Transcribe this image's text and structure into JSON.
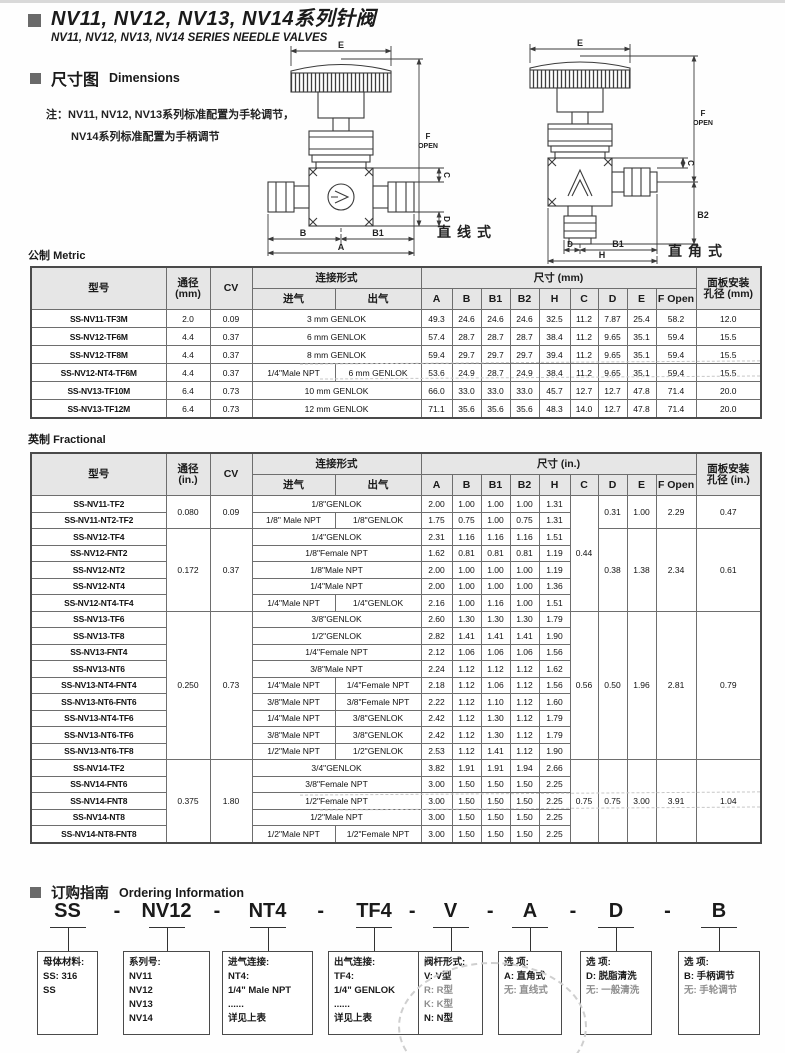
{
  "page": {
    "title_cn": "NV11, NV12, NV13, NV14系列针阀",
    "title_en": "NV11, NV12, NV13, NV14 SERIES NEEDLE VALVES",
    "dim_section": {
      "cn": "尺寸图",
      "en": "Dimensions"
    },
    "note_line1": "注：NV11, NV12, NV13系列标准配置为手轮调节，",
    "note_line2": "NV14系列标准配置为手柄调节",
    "metric_label": {
      "cn": "公制",
      "en": "Metric"
    },
    "fractional_label": {
      "cn": "英制",
      "en": "Fractional"
    },
    "ordering_section": {
      "cn": "订购指南",
      "en": "Ordering Information"
    }
  },
  "diagrams": {
    "left": {
      "label": "直线式",
      "E": "E",
      "F": "F",
      "OPEN": "OPEN",
      "C": "C",
      "D": "D",
      "B": "B",
      "B1": "B1",
      "A": "A"
    },
    "right": {
      "label": "直角式",
      "E": "E",
      "F": "F",
      "OPEN": "OPEN",
      "C": "C",
      "B2": "B2",
      "D": "D",
      "B1": "B1",
      "H": "H"
    }
  },
  "metric_table": {
    "headers": {
      "model": "型号",
      "bore": "通径",
      "bore_unit": "(mm)",
      "cv": "CV",
      "connection": "连接形式",
      "inlet": "进气",
      "outlet": "出气",
      "dimensions": "尺寸  (mm)",
      "dims": [
        "A",
        "B",
        "B1",
        "B2",
        "H",
        "C",
        "D",
        "E",
        "F Open"
      ],
      "panel1": "面板安装",
      "panel2": "孔径  (mm)"
    },
    "rows": [
      [
        "SS-NV11-TF3M",
        "2.0",
        "0.09",
        {
          "t": "3 mm GENLOK",
          "cs": 2
        },
        "49.3",
        "24.6",
        "24.6",
        "24.6",
        "32.5",
        "11.2",
        "7.87",
        "25.4",
        "58.2",
        "12.0"
      ],
      [
        "SS-NV12-TF6M",
        "4.4",
        "0.37",
        {
          "t": "6 mm GENLOK",
          "cs": 2
        },
        "57.4",
        "28.7",
        "28.7",
        "28.7",
        "38.4",
        "11.2",
        "9.65",
        "35.1",
        "59.4",
        "15.5"
      ],
      [
        "SS-NV12-TF8M",
        "4.4",
        "0.37",
        {
          "t": "8 mm GENLOK",
          "cs": 2
        },
        "59.4",
        "29.7",
        "29.7",
        "29.7",
        "39.4",
        "11.2",
        "9.65",
        "35.1",
        "59.4",
        "15.5"
      ],
      [
        "SS-NV12-NT4-TF6M",
        "4.4",
        "0.37",
        {
          "t": "1/4\"Male NPT"
        },
        {
          "t": "6 mm GENLOK"
        },
        {
          "t": "53.6",
          "m": 1
        },
        {
          "t": "24.9",
          "m": 1
        },
        {
          "t": "28.7",
          "m": 1
        },
        {
          "t": "24.9",
          "m": 1
        },
        {
          "t": "38.4",
          "m": 1
        },
        {
          "t": "11.2",
          "m": 1
        },
        {
          "t": "9.65",
          "m": 1
        },
        {
          "t": "35.1",
          "m": 1
        },
        {
          "t": "59.4",
          "m": 1
        },
        {
          "t": "15.5",
          "m": 1
        }
      ],
      [
        "SS-NV13-TF10M",
        "6.4",
        "0.73",
        {
          "t": "10 mm GENLOK",
          "cs": 2
        },
        "66.0",
        "33.0",
        "33.0",
        "33.0",
        "45.7",
        "12.7",
        "12.7",
        "47.8",
        "71.4",
        "20.0"
      ],
      [
        "SS-NV13-TF12M",
        "6.4",
        "0.73",
        {
          "t": "12 mm GENLOK",
          "cs": 2
        },
        "71.1",
        "35.6",
        "35.6",
        "35.6",
        "48.3",
        "14.0",
        "12.7",
        "47.8",
        "71.4",
        "20.0"
      ]
    ]
  },
  "fractional_table": {
    "headers": {
      "model": "型号",
      "bore": "通径",
      "bore_unit": "(in.)",
      "cv": "CV",
      "connection": "连接形式",
      "inlet": "进气",
      "outlet": "出气",
      "dimensions": "尺寸  (in.)",
      "dims": [
        "A",
        "B",
        "B1",
        "B2",
        "H",
        "C",
        "D",
        "E",
        "F Open"
      ],
      "panel1": "面板安装",
      "panel2": "孔径  (in.)"
    },
    "rows": [
      [
        "SS-NV11-TF2",
        {
          "t": "0.080",
          "rs": 2
        },
        {
          "t": "0.09",
          "rs": 2
        },
        {
          "t": "1/8\"GENLOK",
          "cs": 2
        },
        "2.00",
        "1.00",
        "1.00",
        "1.00",
        "1.31",
        {
          "t": "0.44",
          "rs": 7
        },
        {
          "t": "0.31",
          "rs": 2
        },
        {
          "t": "1.00",
          "rs": 2
        },
        {
          "t": "2.29",
          "rs": 2
        },
        {
          "t": "0.47",
          "rs": 2
        }
      ],
      [
        "SS-NV11-NT2-TF2",
        "1/8\" Male NPT",
        "1/8\"GENLOK",
        "1.75",
        "0.75",
        "1.00",
        "0.75",
        "1.31"
      ],
      [
        "SS-NV12-TF4",
        {
          "t": "0.172",
          "rs": 5
        },
        {
          "t": "0.37",
          "rs": 5
        },
        {
          "t": "1/4\"GENLOK",
          "cs": 2
        },
        "2.31",
        "1.16",
        "1.16",
        "1.16",
        "1.51",
        {
          "t": "0.38",
          "rs": 5
        },
        {
          "t": "1.38",
          "rs": 5
        },
        {
          "t": "2.34",
          "rs": 5
        },
        {
          "t": "0.61",
          "rs": 5
        }
      ],
      [
        "SS-NV12-FNT2",
        {
          "t": "1/8\"Female NPT",
          "cs": 2
        },
        "1.62",
        "0.81",
        "0.81",
        "0.81",
        "1.19"
      ],
      [
        "SS-NV12-NT2",
        {
          "t": "1/8\"Male NPT",
          "cs": 2
        },
        "2.00",
        "1.00",
        "1.00",
        "1.00",
        "1.19"
      ],
      [
        "SS-NV12-NT4",
        {
          "t": "1/4\"Male NPT",
          "cs": 2
        },
        "2.00",
        "1.00",
        "1.00",
        "1.00",
        "1.36"
      ],
      [
        "SS-NV12-NT4-TF4",
        "1/4\"Male NPT",
        "1/4\"GENLOK",
        "2.16",
        "1.00",
        "1.16",
        "1.00",
        "1.51"
      ],
      [
        "SS-NV13-TF6",
        {
          "t": "0.250",
          "rs": 9
        },
        {
          "t": "0.73",
          "rs": 9
        },
        {
          "t": "3/8\"GENLOK",
          "cs": 2
        },
        "2.60",
        "1.30",
        "1.30",
        "1.30",
        "1.79",
        {
          "t": "0.56",
          "rs": 9
        },
        {
          "t": "0.50",
          "rs": 9
        },
        {
          "t": "1.96",
          "rs": 9
        },
        {
          "t": "2.81",
          "rs": 9
        },
        {
          "t": "0.79",
          "rs": 9
        }
      ],
      [
        "SS-NV13-TF8",
        {
          "t": "1/2\"GENLOK",
          "cs": 2
        },
        "2.82",
        "1.41",
        "1.41",
        "1.41",
        "1.90"
      ],
      [
        "SS-NV13-FNT4",
        {
          "t": "1/4\"Female NPT",
          "cs": 2
        },
        "2.12",
        "1.06",
        "1.06",
        "1.06",
        "1.56"
      ],
      [
        "SS-NV13-NT6",
        {
          "t": "3/8\"Male NPT",
          "cs": 2
        },
        "2.24",
        "1.12",
        "1.12",
        "1.12",
        "1.62"
      ],
      [
        "SS-NV13-NT4-FNT4",
        "1/4\"Male NPT",
        "1/4\"Female NPT",
        "2.18",
        "1.12",
        "1.06",
        "1.12",
        "1.56"
      ],
      [
        "SS-NV13-NT6-FNT6",
        "3/8\"Male NPT",
        "3/8\"Female NPT",
        "2.22",
        "1.12",
        "1.10",
        "1.12",
        "1.60"
      ],
      [
        "SS-NV13-NT4-TF6",
        "1/4\"Male NPT",
        "3/8\"GENLOK",
        "2.42",
        "1.12",
        "1.30",
        "1.12",
        "1.79"
      ],
      [
        "SS-NV13-NT6-TF6",
        "3/8\"Male NPT",
        "3/8\"GENLOK",
        "2.42",
        "1.12",
        "1.30",
        "1.12",
        "1.79"
      ],
      [
        "SS-NV13-NT6-TF8",
        "1/2\"Male NPT",
        "1/2\"GENLOK",
        "2.53",
        "1.12",
        "1.41",
        "1.12",
        "1.90"
      ],
      [
        "SS-NV14-TF2",
        {
          "t": "0.375",
          "rs": 5
        },
        {
          "t": "1.80",
          "rs": 5
        },
        {
          "t": "3/4\"GENLOK",
          "cs": 2
        },
        "3.82",
        "1.91",
        "1.91",
        "1.94",
        "2.66",
        {
          "t": "0.75",
          "rs": 5,
          "m": 1
        },
        {
          "t": "0.75",
          "rs": 5,
          "m": 1
        },
        {
          "t": "3.00",
          "rs": 5,
          "m": 1
        },
        {
          "t": "3.91",
          "rs": 5,
          "m": 1
        },
        {
          "t": "1.04",
          "rs": 5,
          "m": 1
        }
      ],
      [
        "SS-NV14-FNT6",
        {
          "t": "3/8\"Female NPT",
          "cs": 2
        },
        "3.00",
        "1.50",
        "1.50",
        "1.50",
        "2.25"
      ],
      [
        "SS-NV14-FNT8",
        {
          "t": "1/2\"Female NPT",
          "cs": 2
        },
        {
          "t": "3.00",
          "m": 1
        },
        {
          "t": "1.50",
          "m": 1
        },
        {
          "t": "1.50",
          "m": 1
        },
        {
          "t": "1.50",
          "m": 1
        },
        {
          "t": "2.25",
          "m": 1
        }
      ],
      [
        "SS-NV14-NT8",
        {
          "t": "1/2\"Male NPT",
          "cs": 2
        },
        "3.00",
        "1.50",
        "1.50",
        "1.50",
        "2.25"
      ],
      [
        "SS-NV14-NT8-FNT8",
        "1/2\"Male NPT",
        "1/2\"Female NPT",
        "3.00",
        "1.50",
        "1.50",
        "1.50",
        "2.25"
      ]
    ]
  },
  "ordering": {
    "separator": "-",
    "parts": [
      {
        "code": "SS",
        "lines": [
          "母体材料:",
          "SS: 316 SS"
        ]
      },
      {
        "code": "NV12",
        "lines": [
          "系列号:",
          "NV11",
          "NV12",
          "NV13",
          "NV14"
        ]
      },
      {
        "code": "NT4",
        "lines": [
          "进气连接:",
          "NT4:",
          "1/4\" Male NPT",
          "......",
          "详见上表"
        ]
      },
      {
        "code": "TF4",
        "lines": [
          "出气连接:",
          "TF4:",
          "1/4\" GENLOK",
          "......",
          "详见上表"
        ]
      },
      {
        "code": "V",
        "lines": [
          "阀杆形式:",
          "V: V型",
          {
            "t": "R: R型",
            "m": 1
          },
          {
            "t": "K: K型",
            "m": 1
          },
          "N: N型"
        ]
      },
      {
        "code": "A",
        "lines": [
          "选 项:",
          "A: 直角式",
          {
            "t": "无: 直线式",
            "m": 1
          }
        ]
      },
      {
        "code": "D",
        "lines": [
          "选 项:",
          "D: 脱脂清洗",
          {
            "t": "无: 一般清洗",
            "m": 1
          }
        ]
      },
      {
        "code": "B",
        "lines": [
          "选 项:",
          "B: 手柄调节",
          {
            "t": "无: 手轮调节",
            "m": 1
          }
        ]
      }
    ]
  },
  "colors": {
    "header_bg": "#e6e6e6",
    "table_border": "#4a4a4a",
    "text": "#1a1a1a",
    "muted": "#8a8a8a"
  }
}
